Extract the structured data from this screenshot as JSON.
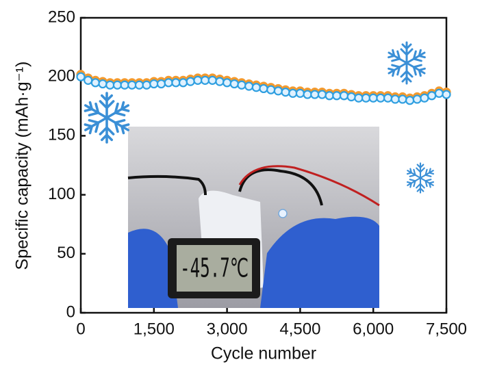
{
  "chart_data": {
    "type": "scatter",
    "x": [
      0,
      150,
      300,
      450,
      600,
      750,
      900,
      1050,
      1200,
      1350,
      1500,
      1650,
      1800,
      1950,
      2100,
      2250,
      2400,
      2550,
      2700,
      2850,
      3000,
      3150,
      3300,
      3450,
      3600,
      3750,
      3900,
      4050,
      4200,
      4350,
      4500,
      4650,
      4800,
      4950,
      5100,
      5250,
      5400,
      5550,
      5700,
      5850,
      6000,
      6150,
      6300,
      6450,
      6600,
      6750,
      6900,
      7050,
      7200,
      7350,
      7500
    ],
    "series": [
      {
        "color": "#f39a2e",
        "values": [
          202,
          199,
          197,
          196,
          195,
          195,
          195,
          195,
          195,
          195,
          196,
          196,
          197,
          197,
          197,
          198,
          199,
          199,
          199,
          198,
          197,
          196,
          195,
          194,
          193,
          192,
          191,
          190,
          189,
          188,
          188,
          187,
          187,
          187,
          186,
          186,
          186,
          185,
          184,
          184,
          184,
          184,
          184,
          183,
          183,
          182,
          183,
          184,
          186,
          188,
          187
        ]
      },
      {
        "color": "#2f9fe0",
        "values": [
          200,
          197,
          195,
          194,
          193,
          193,
          193,
          193,
          193,
          193,
          194,
          194,
          195,
          195,
          195,
          196,
          197,
          197,
          197,
          196,
          195,
          194,
          193,
          192,
          191,
          190,
          189,
          188,
          187,
          186,
          186,
          185,
          185,
          185,
          184,
          184,
          184,
          183,
          182,
          182,
          182,
          182,
          182,
          181,
          181,
          180,
          181,
          182,
          184,
          186,
          185
        ]
      }
    ],
    "xlabel": "Cycle number",
    "ylabel": "Specific capacity (mAh·g⁻¹)",
    "xlim": [
      0,
      7500
    ],
    "ylim": [
      0,
      250
    ],
    "xticks": [
      0,
      {
        "value": 1500,
        "label": "1,500"
      },
      {
        "value": 3000,
        "label": "3,000"
      },
      {
        "value": 4500,
        "label": "4,500"
      },
      {
        "value": 6000,
        "label": "6,000"
      },
      {
        "value": 7500,
        "label": "7,500"
      }
    ],
    "yticks": [
      0,
      50,
      100,
      150,
      200,
      250
    ],
    "annotations": [
      "-45.7℃"
    ]
  }
}
